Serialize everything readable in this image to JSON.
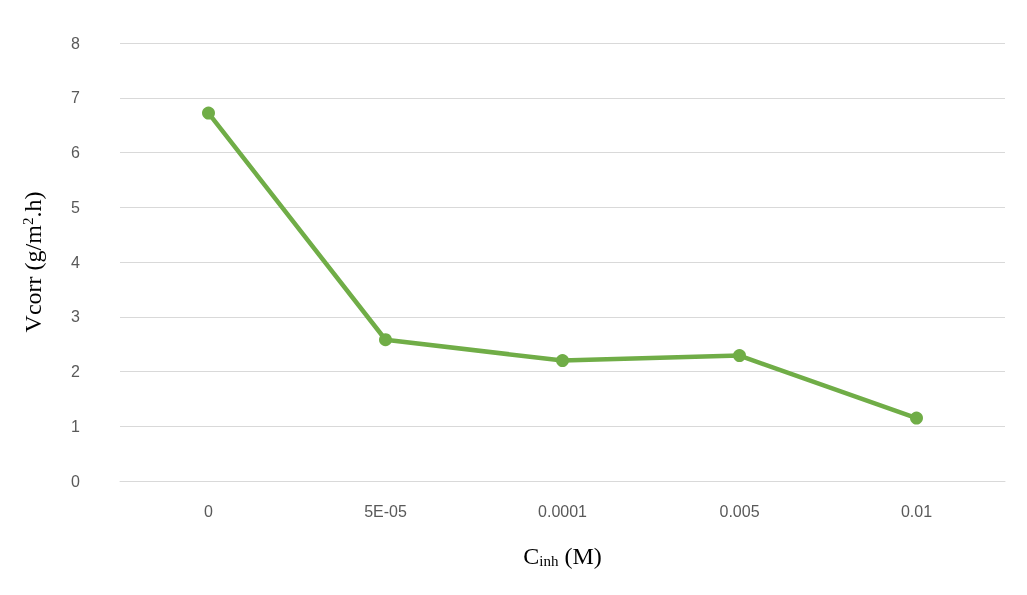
{
  "chart_data": {
    "type": "line",
    "xlabel": "C$_{inh}$ (M)",
    "ylabel": "Vcorr (g/m$^{2}$.h)",
    "categories": [
      "0",
      "5E-05",
      "0.0001",
      "0.005",
      "0.01"
    ],
    "series": [
      {
        "color": "#70ad47",
        "values": [
          6.72,
          2.58,
          2.2,
          2.29,
          1.15
        ]
      }
    ],
    "ylim": [
      0,
      8
    ],
    "yticks": [
      0,
      1,
      2,
      3,
      4,
      5,
      6,
      7,
      8
    ],
    "grid": "y",
    "marker": "circle",
    "line_style": "solid"
  }
}
